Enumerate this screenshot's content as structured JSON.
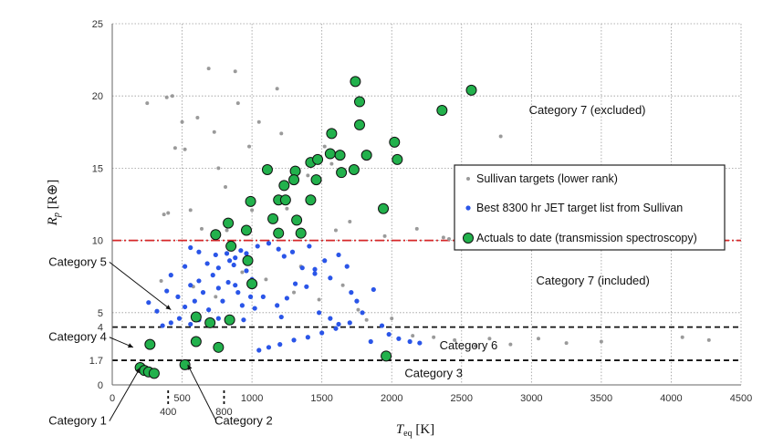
{
  "chart_data": {
    "type": "scatter",
    "xlabel": "Teq [K]",
    "ylabel": "Rp [R⊕]",
    "xlim": [
      0,
      4500
    ],
    "ylim": [
      0,
      25
    ],
    "x_ticks": [
      0,
      500,
      1000,
      1500,
      2000,
      2500,
      3000,
      3500,
      4000,
      4500
    ],
    "y_ticks": [
      0,
      5,
      10,
      15,
      20,
      25
    ],
    "extra_y_ticks": [
      1.7,
      4
    ],
    "extra_x_ticks": [
      400,
      800
    ],
    "grid": true,
    "legend_position": "right",
    "thresholds": [
      {
        "y": 10,
        "style": "dash-dot",
        "color": "#d62728"
      },
      {
        "y": 4,
        "style": "dashed",
        "color": "#111111"
      },
      {
        "y": 1.7,
        "style": "dashed",
        "color": "#111111"
      }
    ],
    "annotations": [
      {
        "text": "Category 7 (excluded)",
        "x": 3400,
        "y": 19
      },
      {
        "text": "Category 7 (included)",
        "x": 3440,
        "y": 7.2
      },
      {
        "text": "Category 6",
        "x": 2550,
        "y": 2.7
      },
      {
        "text": "Category 3",
        "x": 2300,
        "y": 0.8
      },
      {
        "text": "Category 5",
        "x": -40,
        "y": 8.5,
        "target_x": 420,
        "target_y": 5.2
      },
      {
        "text": "Category 4",
        "x": -40,
        "y": 3.3,
        "target_x": 150,
        "target_y": 2.6
      },
      {
        "text": "Category 1",
        "x": -40,
        "y": -2.5,
        "target_x": 200,
        "target_y": 1.2
      },
      {
        "text": "Category 2",
        "x": 940,
        "y": -2.5,
        "target_x": 540,
        "target_y": 1.4
      }
    ],
    "series": [
      {
        "name": "Sullivan targets (lower rank)",
        "color": "#9a9a9a",
        "marker": "small-dot",
        "points": [
          [
            250,
            19.5
          ],
          [
            370,
            11.8
          ],
          [
            390,
            19.9
          ],
          [
            430,
            20
          ],
          [
            450,
            16.4
          ],
          [
            500,
            18.2
          ],
          [
            520,
            16.3
          ],
          [
            610,
            18.5
          ],
          [
            690,
            21.9
          ],
          [
            730,
            17.5
          ],
          [
            760,
            15
          ],
          [
            810,
            13.7
          ],
          [
            880,
            21.7
          ],
          [
            900,
            19.5
          ],
          [
            980,
            16.5
          ],
          [
            1050,
            18.2
          ],
          [
            1180,
            20.5
          ],
          [
            1210,
            17.4
          ],
          [
            1250,
            12.2
          ],
          [
            1400,
            14.5
          ],
          [
            1520,
            16.5
          ],
          [
            1570,
            15.3
          ],
          [
            2180,
            10.8
          ],
          [
            2370,
            10.2
          ],
          [
            2410,
            10.1
          ],
          [
            2780,
            17.2
          ],
          [
            400,
            11.9
          ],
          [
            560,
            12.1
          ],
          [
            640,
            10.8
          ],
          [
            820,
            10.7
          ],
          [
            1000,
            12.1
          ],
          [
            1600,
            10.7
          ],
          [
            1700,
            11.3
          ],
          [
            1950,
            10.3
          ],
          [
            350,
            7.2
          ],
          [
            580,
            6.8
          ],
          [
            740,
            6.1
          ],
          [
            930,
            7.8
          ],
          [
            1100,
            7.3
          ],
          [
            1300,
            6.4
          ],
          [
            1350,
            8.2
          ],
          [
            1480,
            5.9
          ],
          [
            1650,
            6.9
          ],
          [
            1760,
            5.2
          ],
          [
            1820,
            4.5
          ],
          [
            2000,
            4.6
          ],
          [
            2150,
            3.4
          ],
          [
            2300,
            3.3
          ],
          [
            2450,
            3.1
          ],
          [
            2600,
            2.7
          ],
          [
            2700,
            3.2
          ],
          [
            2850,
            2.8
          ],
          [
            3050,
            3.2
          ],
          [
            3250,
            2.9
          ],
          [
            3500,
            3.0
          ],
          [
            4080,
            3.3
          ],
          [
            4270,
            3.1
          ]
        ]
      },
      {
        "name": "Best 8300 hr JET target list from Sullivan",
        "color": "#2a55e8",
        "marker": "dot",
        "points": [
          [
            260,
            5.7
          ],
          [
            320,
            5.1
          ],
          [
            390,
            6.5
          ],
          [
            420,
            7.6
          ],
          [
            470,
            6.1
          ],
          [
            520,
            5.4
          ],
          [
            560,
            6.9
          ],
          [
            590,
            5.8
          ],
          [
            620,
            7.2
          ],
          [
            650,
            6.4
          ],
          [
            690,
            5.2
          ],
          [
            720,
            7.6
          ],
          [
            760,
            6.7
          ],
          [
            790,
            5.8
          ],
          [
            830,
            7.1
          ],
          [
            870,
            8.3
          ],
          [
            900,
            6.4
          ],
          [
            930,
            5.5
          ],
          [
            960,
            7.9
          ],
          [
            990,
            6.1
          ],
          [
            560,
            9.5
          ],
          [
            620,
            9.2
          ],
          [
            740,
            9.0
          ],
          [
            820,
            9.1
          ],
          [
            880,
            8.8
          ],
          [
            520,
            8.2
          ],
          [
            680,
            8.4
          ],
          [
            760,
            8.1
          ],
          [
            840,
            8.6
          ],
          [
            920,
            9.3
          ],
          [
            960,
            9.1
          ],
          [
            1040,
            9.6
          ],
          [
            1120,
            9.8
          ],
          [
            1190,
            9.4
          ],
          [
            1230,
            8.9
          ],
          [
            1290,
            9.2
          ],
          [
            1360,
            8.1
          ],
          [
            1410,
            9.6
          ],
          [
            1450,
            8.0
          ],
          [
            1520,
            8.6
          ],
          [
            1560,
            7.4
          ],
          [
            1620,
            9.0
          ],
          [
            1680,
            8.2
          ],
          [
            1710,
            6.4
          ],
          [
            1750,
            5.8
          ],
          [
            1790,
            5.0
          ],
          [
            1870,
            6.6
          ],
          [
            1930,
            4.1
          ],
          [
            1980,
            3.5
          ],
          [
            2050,
            3.2
          ],
          [
            2130,
            3.0
          ],
          [
            2200,
            2.9
          ],
          [
            1700,
            4.3
          ],
          [
            1600,
            3.9
          ],
          [
            1500,
            3.6
          ],
          [
            1400,
            3.3
          ],
          [
            1300,
            3.1
          ],
          [
            1200,
            2.8
          ],
          [
            1120,
            2.6
          ],
          [
            1050,
            2.4
          ],
          [
            1450,
            7.7
          ],
          [
            1390,
            6.8
          ],
          [
            1250,
            6.0
          ],
          [
            1310,
            7.0
          ],
          [
            1480,
            5.0
          ],
          [
            1560,
            4.6
          ],
          [
            1620,
            4.2
          ],
          [
            1850,
            3.0
          ],
          [
            1020,
            5.3
          ],
          [
            1080,
            6.1
          ],
          [
            1180,
            5.5
          ],
          [
            1210,
            4.7
          ],
          [
            1000,
            7.3
          ],
          [
            880,
            6.9
          ],
          [
            940,
            4.5
          ],
          [
            850,
            4.3
          ],
          [
            760,
            4.6
          ],
          [
            680,
            4.4
          ],
          [
            620,
            4.5
          ],
          [
            560,
            4.2
          ],
          [
            480,
            4.6
          ],
          [
            420,
            4.3
          ],
          [
            360,
            4.1
          ]
        ]
      },
      {
        "name": "Actuals to date (transmission spectroscopy)",
        "color": "#22b14c",
        "marker": "circle",
        "points": [
          [
            1740,
            21
          ],
          [
            2570,
            20.4
          ],
          [
            1770,
            19.6
          ],
          [
            2360,
            19
          ],
          [
            1770,
            18
          ],
          [
            1570,
            17.4
          ],
          [
            2020,
            16.8
          ],
          [
            1560,
            16
          ],
          [
            1630,
            15.9
          ],
          [
            1820,
            15.9
          ],
          [
            2040,
            15.6
          ],
          [
            1420,
            15.4
          ],
          [
            1470,
            15.6
          ],
          [
            1310,
            14.8
          ],
          [
            1730,
            14.9
          ],
          [
            1640,
            14.7
          ],
          [
            1110,
            14.9
          ],
          [
            1300,
            14.2
          ],
          [
            1460,
            14.2
          ],
          [
            1230,
            13.8
          ],
          [
            1190,
            12.8
          ],
          [
            1240,
            12.8
          ],
          [
            1420,
            12.8
          ],
          [
            990,
            12.7
          ],
          [
            1940,
            12.2
          ],
          [
            1150,
            11.5
          ],
          [
            1320,
            11.4
          ],
          [
            830,
            11.2
          ],
          [
            960,
            10.7
          ],
          [
            740,
            10.4
          ],
          [
            1190,
            10.5
          ],
          [
            1350,
            10.5
          ],
          [
            850,
            9.6
          ],
          [
            970,
            8.6
          ],
          [
            1000,
            7.0
          ],
          [
            600,
            4.7
          ],
          [
            840,
            4.5
          ],
          [
            700,
            4.3
          ],
          [
            600,
            3.0
          ],
          [
            760,
            2.6
          ],
          [
            270,
            2.8
          ],
          [
            1960,
            2.0
          ],
          [
            520,
            1.4
          ],
          [
            200,
            1.2
          ],
          [
            230,
            1.0
          ],
          [
            260,
            0.9
          ],
          [
            300,
            0.8
          ]
        ]
      }
    ]
  }
}
